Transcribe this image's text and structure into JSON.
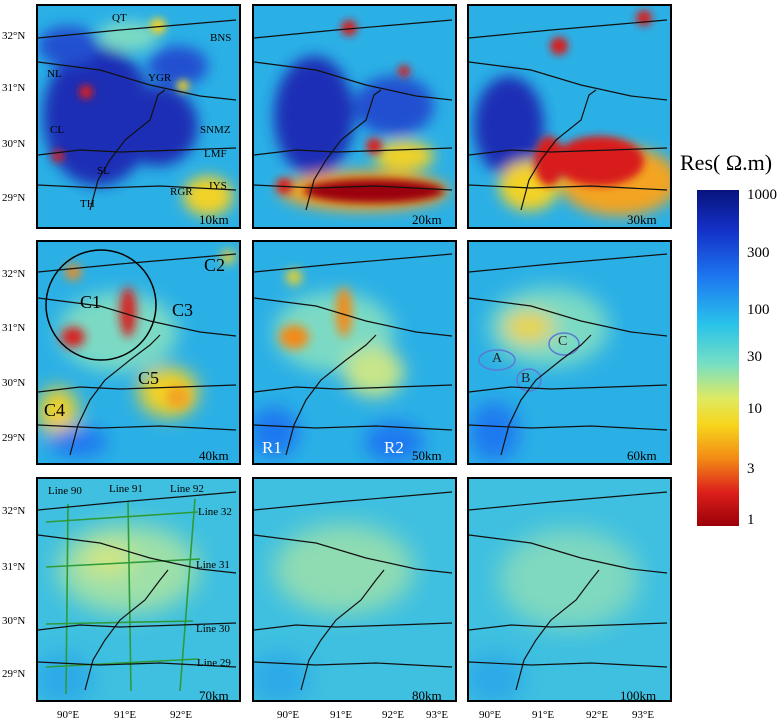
{
  "colorbar": {
    "title": "Res( Ω.m)",
    "ticks": [
      "1000",
      "300",
      "100",
      "30",
      "10",
      "3",
      "1"
    ]
  },
  "axes": {
    "lat_labels": [
      "32°N",
      "31°N",
      "30°N",
      "29°N"
    ],
    "lon_labels": [
      "90°E",
      "91°E",
      "92°E",
      "93°E"
    ]
  },
  "panels": [
    {
      "depth": "10km",
      "labels": [
        "QT",
        "BNS",
        "NL",
        "YGR",
        "CL",
        "SNMZ",
        "LMF",
        "SL",
        "IYS",
        "RGR",
        "TH"
      ]
    },
    {
      "depth": "20km",
      "labels": []
    },
    {
      "depth": "30km",
      "labels": []
    },
    {
      "depth": "40km",
      "labels": [
        "C1",
        "C2",
        "C3",
        "C4",
        "C5"
      ]
    },
    {
      "depth": "50km",
      "labels": [
        "R1",
        "R2"
      ]
    },
    {
      "depth": "60km",
      "labels": [
        "A",
        "B",
        "C"
      ]
    },
    {
      "depth": "70km",
      "labels": [
        "Line 90",
        "Line 91",
        "Line 92",
        "Line 32",
        "Line 31",
        "Line 30",
        "Line 29"
      ]
    },
    {
      "depth": "80km",
      "labels": []
    },
    {
      "depth": "100km",
      "labels": []
    }
  ],
  "colors": {
    "background": "#2bb0e6",
    "high_res": "#1d2fb5",
    "low_res": "#d81b1b",
    "mid_res": "#f2d227",
    "profile_line": "#2e9b3a"
  }
}
